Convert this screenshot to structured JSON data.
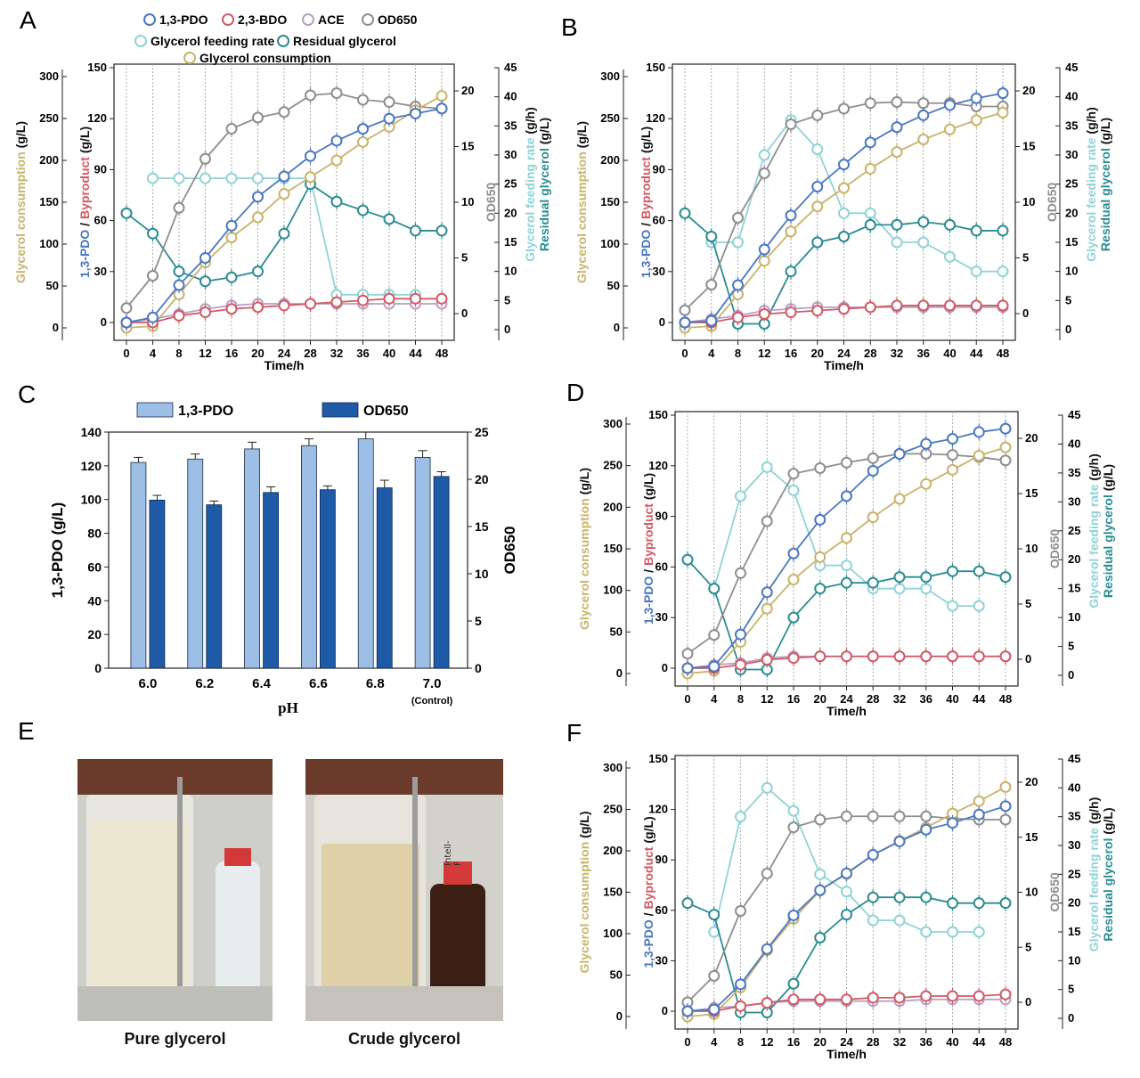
{
  "legend_A": {
    "pdo": "1,3-PDO",
    "bdo": "2,3-BDO",
    "ace": "ACE",
    "od": "OD650",
    "feed": "Glycerol feeding rate",
    "resid": "Residual glycerol",
    "cons": "Glycerol consumption"
  },
  "panel_E": {
    "letter": "E",
    "left_caption": "Pure glycerol",
    "right_caption": "Crude glycerol",
    "label_fragment": "Intell-F"
  },
  "colors": {
    "pdo": "#4a78c2",
    "bdo": "#d15b63",
    "ace": "#b79fc6",
    "od": "#8e8e8e",
    "feed": "#8fd3d8",
    "resid": "#2a8c92",
    "cons": "#c9b36a",
    "bar_pdo": "#9dbfe6",
    "bar_od": "#1f5aa6"
  },
  "chart_data": [
    {
      "panel": "A",
      "type": "line",
      "xlabel": "Time/h",
      "x": [
        0,
        4,
        8,
        12,
        16,
        20,
        24,
        28,
        32,
        36,
        40,
        44,
        48
      ],
      "axes": {
        "consumption": {
          "label": "Glycerol consumption",
          "unit": " (g/L)",
          "ticks": [
            0,
            50,
            100,
            150,
            200,
            250,
            300
          ]
        },
        "pdo_byproduct": {
          "label_a": "1,3-PDO",
          "label_b": " / ",
          "label_c": "Byproduct",
          "unit": " (g/L)",
          "ticks": [
            0,
            30,
            60,
            90,
            120,
            150
          ]
        },
        "od": {
          "label": "OD650",
          "ticks": [
            0,
            5,
            10,
            15,
            20
          ]
        },
        "feed_resid": {
          "label_a": "Glycerol feeding rate",
          "unit_a": " (g/h)",
          "label_b": "Residual glycerol",
          "unit_b": " (g/L)",
          "ticks": [
            0,
            5,
            10,
            15,
            20,
            25,
            30,
            35,
            40,
            45
          ]
        }
      },
      "series": [
        {
          "name": "1,3-PDO",
          "axis": "pdo_byproduct",
          "values": [
            0,
            3,
            22,
            38,
            57,
            74,
            86,
            98,
            107,
            114,
            120,
            123,
            126
          ]
        },
        {
          "name": "2,3-BDO",
          "axis": "pdo_byproduct",
          "values": [
            0,
            0,
            4,
            6,
            8,
            9,
            10,
            11,
            12,
            13,
            14,
            14,
            14
          ]
        },
        {
          "name": "ACE",
          "axis": "pdo_byproduct",
          "values": [
            0,
            2,
            5,
            8,
            10,
            11,
            11,
            11,
            11,
            11,
            11,
            11,
            11
          ]
        },
        {
          "name": "OD650",
          "axis": "od",
          "values": [
            0.5,
            3.4,
            9.5,
            13.9,
            16.6,
            17.6,
            18.1,
            19.6,
            19.8,
            19.2,
            19.0,
            18.6,
            18.4
          ]
        },
        {
          "name": "Glycerol feeding rate",
          "axis": "feed_resid",
          "values": [
            null,
            26,
            26,
            26,
            26,
            26,
            26,
            26,
            6,
            6,
            6,
            6,
            null
          ]
        },
        {
          "name": "Residual glycerol",
          "axis": "feed_resid",
          "values": [
            20,
            16.5,
            10,
            8.3,
            9,
            10,
            16.5,
            25,
            22,
            20.5,
            19,
            17,
            17
          ]
        },
        {
          "name": "Glycerol consumption",
          "axis": "consumption",
          "values": [
            0,
            2,
            40,
            78,
            108,
            132,
            160,
            180,
            200,
            222,
            240,
            260,
            277
          ]
        }
      ]
    },
    {
      "panel": "B",
      "type": "line",
      "xlabel": "Time/h",
      "x": [
        0,
        4,
        8,
        12,
        16,
        20,
        24,
        28,
        32,
        36,
        40,
        44,
        48
      ],
      "axes": {
        "consumption": {
          "label": "Glycerol consumption",
          "unit": " (g/L)",
          "ticks": [
            0,
            50,
            100,
            150,
            200,
            250,
            300
          ]
        },
        "pdo_byproduct": {
          "label_a": "1,3-PDO",
          "label_b": " / ",
          "label_c": "Byproduct",
          "unit": " (g/L)",
          "ticks": [
            0,
            30,
            60,
            90,
            120,
            150
          ]
        },
        "od": {
          "label": "OD650",
          "ticks": [
            0,
            5,
            10,
            15,
            20
          ]
        },
        "feed_resid": {
          "label_a": "Glycerol feeding rate",
          "unit_a": " (g/h)",
          "label_b": "Residual glycerol",
          "unit_b": " (g/L)",
          "ticks": [
            0,
            5,
            10,
            15,
            20,
            25,
            30,
            35,
            40,
            45
          ]
        }
      },
      "series": [
        {
          "name": "1,3-PDO",
          "axis": "pdo_byproduct",
          "values": [
            0,
            1,
            22,
            43,
            63,
            80,
            93,
            106,
            115,
            122,
            128,
            132,
            135
          ]
        },
        {
          "name": "2,3-BDO",
          "axis": "pdo_byproduct",
          "values": [
            0,
            0,
            3,
            5,
            6,
            7,
            8,
            9,
            10,
            10,
            10,
            10,
            10
          ]
        },
        {
          "name": "ACE",
          "axis": "pdo_byproduct",
          "values": [
            0,
            2,
            4,
            7,
            8,
            9,
            9,
            9,
            9,
            9,
            9,
            9,
            9
          ]
        },
        {
          "name": "OD650",
          "axis": "od",
          "values": [
            0.3,
            2.6,
            8.6,
            12.6,
            17,
            17.8,
            18.4,
            18.9,
            19,
            18.9,
            18.9,
            18.6,
            18.6
          ]
        },
        {
          "name": "Glycerol feeding rate",
          "axis": "feed_resid",
          "values": [
            null,
            15,
            15,
            30,
            36,
            31,
            20,
            20,
            15,
            15,
            12.5,
            10,
            10
          ]
        },
        {
          "name": "Residual glycerol",
          "axis": "feed_resid",
          "values": [
            20,
            16,
            1,
            1,
            10,
            15,
            16,
            18,
            18,
            18.5,
            18,
            17,
            17
          ]
        },
        {
          "name": "Glycerol consumption",
          "axis": "consumption",
          "values": [
            0,
            2,
            40,
            80,
            115,
            145,
            167,
            190,
            210,
            225,
            237,
            248,
            257
          ]
        }
      ]
    },
    {
      "panel": "C",
      "type": "bar",
      "xlabel": "pH",
      "categories": [
        "6.0",
        "6.2",
        "6.4",
        "6.6",
        "6.8",
        "7.0"
      ],
      "category_note": "(Control)",
      "y_left": {
        "label": "1,3-PDO (g/L)",
        "ticks": [
          0,
          20,
          40,
          60,
          80,
          100,
          120,
          140
        ]
      },
      "y_right": {
        "label": "OD650",
        "ticks": [
          0,
          5,
          10,
          15,
          20,
          25
        ]
      },
      "series": [
        {
          "name": "1,3-PDO",
          "axis": "left",
          "values": [
            122,
            124,
            130,
            132,
            136,
            125
          ],
          "errors": [
            3,
            3,
            4,
            4,
            4,
            4
          ]
        },
        {
          "name": "OD650",
          "axis": "right",
          "values": [
            17.8,
            17.3,
            18.6,
            18.9,
            19.1,
            20.3
          ],
          "errors": [
            0.5,
            0.4,
            0.6,
            0.4,
            0.8,
            0.5
          ]
        }
      ]
    },
    {
      "panel": "D",
      "type": "line",
      "xlabel": "Time/h",
      "x": [
        0,
        4,
        8,
        12,
        16,
        20,
        24,
        28,
        32,
        36,
        40,
        44,
        48
      ],
      "axes": {
        "consumption": {
          "label": "Glycerol consumption",
          "unit": " (g/L)",
          "ticks": [
            0,
            50,
            100,
            150,
            200,
            250,
            300
          ]
        },
        "pdo_byproduct": {
          "label_a": "1,3-PDO",
          "label_b": " / ",
          "label_c": "Byproduct",
          "unit": " (g/L)",
          "ticks": [
            0,
            30,
            60,
            90,
            120,
            150
          ]
        },
        "od": {
          "label": "OD650",
          "ticks": [
            0,
            5,
            10,
            15,
            20
          ]
        },
        "feed_resid": {
          "label_a": "Glycerol feeding rate",
          "unit_a": " (g/h)",
          "label_b": "Residual glycerol",
          "unit_b": " (g/L)",
          "ticks": [
            0,
            5,
            10,
            15,
            20,
            25,
            30,
            35,
            40,
            45
          ]
        }
      },
      "series": [
        {
          "name": "1,3-PDO",
          "axis": "pdo_byproduct",
          "values": [
            0,
            1,
            20,
            45,
            68,
            88,
            102,
            117,
            127,
            133,
            136,
            140,
            142
          ]
        },
        {
          "name": "2,3-BDO",
          "axis": "pdo_byproduct",
          "values": [
            0,
            0,
            2,
            5,
            6,
            7,
            7,
            7,
            7,
            7,
            7,
            7,
            7
          ]
        },
        {
          "name": "ACE",
          "axis": "pdo_byproduct",
          "values": [
            0,
            2,
            3,
            6,
            7,
            7,
            7,
            7,
            7,
            7,
            7,
            7,
            7
          ]
        },
        {
          "name": "OD650",
          "axis": "od",
          "values": [
            0.5,
            2.2,
            7.8,
            12.5,
            16.8,
            17.3,
            17.8,
            18.2,
            18.6,
            18.6,
            18.5,
            18.3,
            18
          ]
        },
        {
          "name": "Glycerol feeding rate",
          "axis": "feed_resid",
          "values": [
            null,
            15,
            31,
            36,
            32,
            19,
            19,
            15,
            15,
            15,
            12,
            12,
            null
          ]
        },
        {
          "name": "Residual glycerol",
          "axis": "feed_resid",
          "values": [
            20,
            15,
            1,
            1,
            10,
            15,
            16,
            16,
            17,
            17,
            18,
            18,
            17
          ]
        },
        {
          "name": "Glycerol consumption",
          "axis": "consumption",
          "values": [
            0,
            3,
            38,
            78,
            113,
            140,
            163,
            188,
            210,
            228,
            245,
            262,
            272
          ]
        }
      ]
    },
    {
      "panel": "F",
      "type": "line",
      "xlabel": "Time/h",
      "x": [
        0,
        4,
        8,
        12,
        16,
        20,
        24,
        28,
        32,
        36,
        40,
        44,
        48
      ],
      "axes": {
        "consumption": {
          "label": "Glycerol consumption",
          "unit": " (g/L)",
          "ticks": [
            0,
            50,
            100,
            150,
            200,
            250,
            300
          ]
        },
        "pdo_byproduct": {
          "label_a": "1,3-PDO",
          "label_b": " / ",
          "label_c": "Byproduct",
          "unit": " (g/L)",
          "ticks": [
            0,
            30,
            60,
            90,
            120,
            150
          ]
        },
        "od": {
          "label": "OD650",
          "ticks": [
            0,
            5,
            10,
            15,
            20
          ]
        },
        "feed_resid": {
          "label_a": "Glycerol feeding rate",
          "unit_a": " (g/h)",
          "label_b": "Residual glycerol",
          "unit_b": " (g/L)",
          "ticks": [
            0,
            5,
            10,
            15,
            20,
            25,
            30,
            35,
            40,
            45
          ]
        }
      },
      "series": [
        {
          "name": "1,3-PDO",
          "axis": "pdo_byproduct",
          "values": [
            0,
            1,
            16,
            37,
            57,
            72,
            82,
            93,
            101,
            108,
            112,
            117,
            122
          ]
        },
        {
          "name": "2,3-BDO",
          "axis": "pdo_byproduct",
          "values": [
            0,
            0,
            3,
            5,
            7,
            7,
            7,
            8,
            8,
            9,
            9,
            9,
            10
          ]
        },
        {
          "name": "ACE",
          "axis": "pdo_byproduct",
          "values": [
            0,
            2,
            3,
            5,
            6,
            6,
            6,
            6,
            6,
            7,
            7,
            7,
            7
          ]
        },
        {
          "name": "OD650",
          "axis": "od",
          "values": [
            0,
            2.4,
            8.3,
            11.7,
            15.9,
            16.6,
            16.9,
            16.9,
            16.9,
            16.9,
            16.7,
            16.6,
            16.6
          ]
        },
        {
          "name": "Glycerol feeding rate",
          "axis": "feed_resid",
          "values": [
            null,
            15,
            35,
            40,
            36,
            25,
            22,
            17,
            17,
            15,
            15,
            15,
            null
          ]
        },
        {
          "name": "Residual glycerol",
          "axis": "feed_resid",
          "values": [
            20,
            18,
            1,
            1,
            6,
            14,
            18,
            21,
            21,
            21,
            20,
            20,
            20
          ]
        },
        {
          "name": "Glycerol consumption",
          "axis": "consumption",
          "values": [
            0,
            3,
            35,
            80,
            118,
            152,
            172,
            195,
            212,
            228,
            245,
            260,
            277
          ]
        }
      ]
    }
  ]
}
